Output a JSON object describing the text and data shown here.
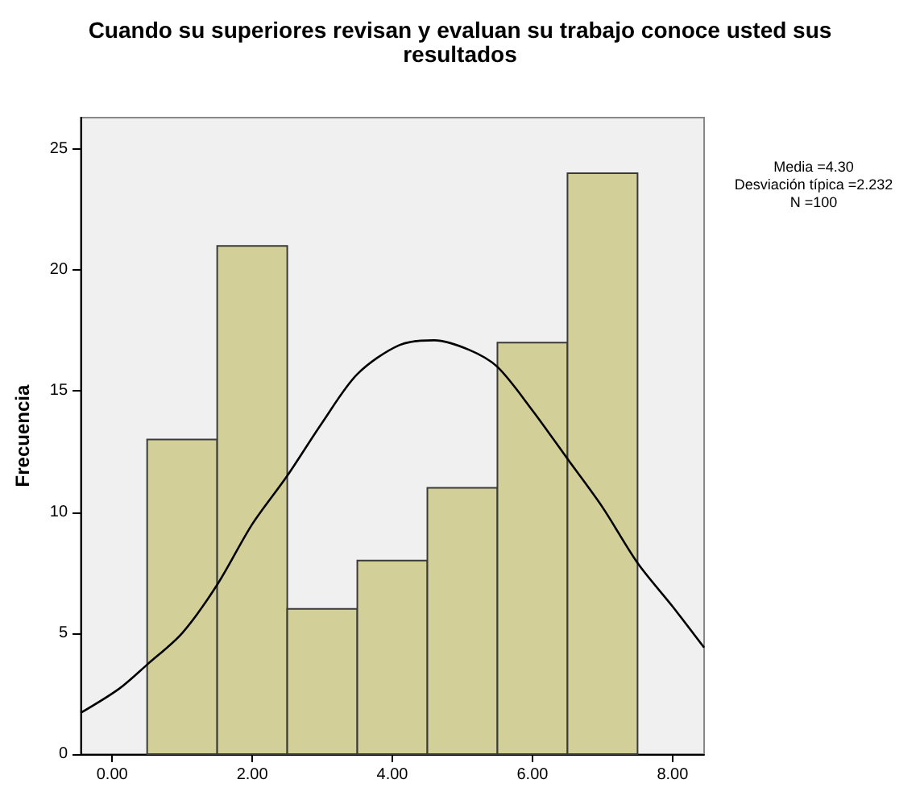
{
  "chart_data": {
    "type": "histogram",
    "title": "Cuando su superiores revisan y evaluan su trabajo conoce usted sus\nresultados",
    "ylabel": "Frecuencia",
    "annotations": [
      "Media =4.30",
      "Desviación típica =2.232",
      "N =100"
    ],
    "bins": [
      0.5,
      1.5,
      2.5,
      3.5,
      4.5,
      5.5,
      6.5,
      7.5
    ],
    "series": [
      {
        "type": "histogram",
        "color": "#d3cf98",
        "values": [
          13,
          21,
          6,
          8,
          11,
          17,
          24
        ]
      },
      {
        "type": "line",
        "color": "#000000",
        "x": [
          -0.45,
          0.1,
          0.5,
          1.0,
          1.5,
          2.0,
          2.5,
          3.0,
          3.5,
          4.1,
          4.6,
          5.1,
          5.5,
          6.0,
          6.5,
          7.0,
          7.5,
          8.0,
          8.45
        ],
        "values": [
          1.7,
          2.7,
          3.7,
          5.0,
          7.0,
          9.5,
          11.5,
          13.7,
          15.7,
          16.9,
          17.1,
          16.7,
          16.0,
          14.2,
          12.2,
          10.2,
          7.9,
          6.1,
          4.4
        ]
      }
    ],
    "xlim": [
      -0.45,
      8.45
    ],
    "xticks": [
      {
        "value": 0,
        "label": "0.00"
      },
      {
        "value": 2,
        "label": "2.00"
      },
      {
        "value": 4,
        "label": "4.00"
      },
      {
        "value": 6,
        "label": "6.00"
      },
      {
        "value": 8,
        "label": "8.00"
      }
    ],
    "ylim": [
      0,
      26.3
    ],
    "yticks": [
      0,
      5,
      10,
      15,
      20,
      25
    ],
    "marker": "none"
  }
}
